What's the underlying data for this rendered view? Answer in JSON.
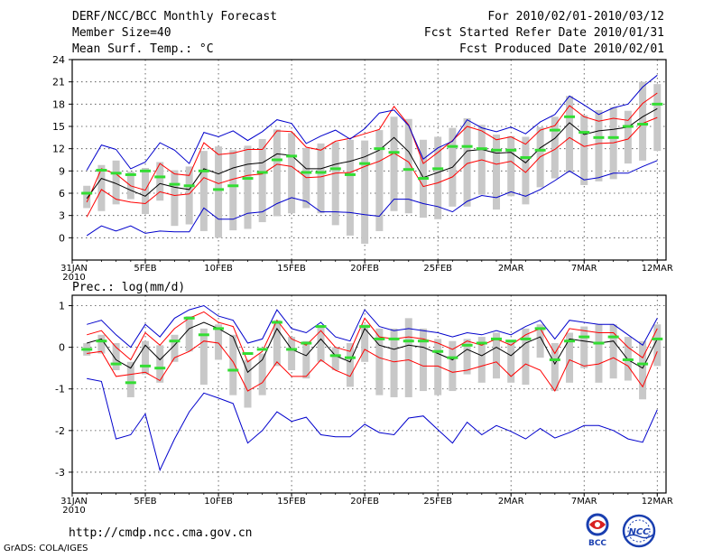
{
  "header": {
    "left_lines": [
      "DERF/NCC/BCC Monthly Forecast",
      "Member Size=40",
      "Mean Surf. Temp.: °C"
    ],
    "right_lines": [
      "For 2010/02/01-2010/03/12",
      "Fcst Started Refer Date 2010/01/31",
      "Fcst Produced Date 2010/02/01"
    ]
  },
  "footer": {
    "url": "http://cmdp.ncc.cma.gov.cn",
    "credit": "GrADS: COLA/IGES",
    "logo_left": "BCC",
    "logo_right": "NCC"
  },
  "colors": {
    "mean": "#000000",
    "spread": "#ff0000",
    "extreme": "#0000cc",
    "box": "#c8c8c8",
    "obs": "#33dd33"
  },
  "chart_data": [
    {
      "type": "line",
      "title": "Mean Surf. Temp.: °C",
      "x_tick_labels": [
        "31JAN\n2010",
        "5FEB",
        "10FEB",
        "15FEB",
        "20FEB",
        "25FEB",
        "2MAR",
        "7MAR",
        "12MAR"
      ],
      "x_tick_days": [
        0,
        5,
        10,
        15,
        20,
        25,
        30,
        35,
        40
      ],
      "ylim": [
        -3,
        24
      ],
      "yticks": [
        0,
        3,
        6,
        9,
        12,
        15,
        18,
        21,
        24
      ],
      "days": [
        1,
        2,
        3,
        4,
        5,
        6,
        7,
        8,
        9,
        10,
        11,
        12,
        13,
        14,
        15,
        16,
        17,
        18,
        19,
        20,
        21,
        22,
        23,
        24,
        25,
        26,
        27,
        28,
        29,
        30,
        31,
        32,
        33,
        34,
        35,
        36,
        37,
        38,
        39,
        40
      ],
      "series": [
        {
          "name": "max",
          "values": [
            0.3,
            1.6,
            0.9,
            1.6,
            0.6,
            0.9,
            0.8,
            0.8,
            4.0,
            2.5,
            2.5,
            3.3,
            3.5,
            4.6,
            5.4,
            4.9,
            3.5,
            3.5,
            3.4,
            3.1,
            2.9,
            5.2,
            5.2,
            4.6,
            4.2,
            3.5,
            4.9,
            5.7,
            5.4,
            6.2,
            5.6,
            6.5,
            7.7,
            9.0,
            7.8,
            8.1,
            8.7,
            8.7,
            9.6,
            10.4
          ]
        },
        {
          "name": "p_high",
          "values": [
            4.8,
            9.3,
            8.6,
            7.0,
            6.4,
            10.0,
            8.6,
            8.4,
            12.8,
            11.2,
            11.4,
            11.9,
            11.9,
            14.4,
            14.3,
            12.2,
            11.8,
            13.0,
            13.4,
            14.0,
            14.6,
            17.7,
            15.2,
            10.0,
            11.5,
            13.1,
            15.0,
            14.4,
            13.2,
            13.6,
            12.6,
            14.5,
            15.1,
            17.8,
            16.3,
            15.7,
            16.1,
            15.8,
            18.1,
            19.5
          ]
        },
        {
          "name": "mean",
          "values": [
            5.3,
            8.0,
            7.3,
            6.4,
            5.6,
            7.3,
            6.8,
            6.5,
            9.3,
            8.6,
            9.4,
            9.9,
            10.1,
            11.3,
            11.1,
            9.3,
            9.3,
            9.9,
            10.3,
            10.9,
            11.8,
            13.5,
            11.6,
            8.1,
            8.8,
            9.5,
            11.7,
            11.9,
            11.4,
            11.5,
            10.1,
            12.1,
            13.4,
            15.5,
            13.9,
            14.4,
            14.6,
            14.9,
            16.3,
            17.4
          ]
        },
        {
          "name": "p_low",
          "values": [
            2.8,
            6.5,
            5.2,
            4.8,
            4.6,
            6.2,
            5.7,
            5.9,
            8.1,
            7.3,
            7.9,
            8.4,
            8.6,
            9.9,
            9.6,
            8.1,
            8.2,
            8.7,
            8.8,
            9.6,
            10.3,
            11.4,
            10.2,
            6.9,
            7.4,
            8.2,
            10.0,
            10.5,
            9.9,
            10.3,
            8.8,
            10.9,
            11.9,
            13.5,
            12.3,
            12.7,
            12.8,
            13.3,
            15.4,
            16.2
          ]
        },
        {
          "name": "min",
          "values": [
            9.1,
            12.5,
            11.9,
            9.3,
            10.2,
            12.8,
            11.8,
            10.0,
            14.2,
            13.6,
            14.4,
            13.1,
            14.3,
            15.9,
            15.4,
            12.7,
            13.7,
            14.5,
            13.3,
            14.7,
            16.8,
            17.2,
            15.1,
            10.6,
            12.1,
            13.0,
            15.9,
            14.8,
            14.3,
            14.9,
            14.0,
            15.6,
            16.6,
            19.1,
            17.9,
            16.6,
            17.5,
            18.0,
            20.3,
            21.9
          ]
        }
      ],
      "obs_values": [
        6.0,
        9.1,
        8.7,
        8.5,
        9.0,
        8.2,
        7.2,
        7.0,
        9.0,
        6.5,
        7.0,
        8.0,
        8.8,
        10.5,
        11.0,
        8.8,
        8.8,
        9.3,
        8.5,
        10.0,
        12.0,
        11.5,
        9.2,
        8.0,
        9.3,
        12.3,
        12.3,
        12.0,
        11.8,
        11.8,
        10.8,
        11.8,
        14.5,
        16.3,
        14.2,
        13.5,
        13.5,
        15.0,
        15.3,
        18.0
      ],
      "boxes": [
        [
          4.0,
          7.0
        ],
        [
          3.6,
          9.8
        ],
        [
          4.5,
          10.4
        ],
        [
          5.2,
          8.9
        ],
        [
          3.2,
          9.4
        ],
        [
          5.0,
          10.2
        ],
        [
          1.6,
          9.1
        ],
        [
          1.8,
          9.6
        ],
        [
          0.9,
          11.7
        ],
        [
          0.0,
          12.3
        ],
        [
          1.0,
          11.8
        ],
        [
          1.2,
          12.4
        ],
        [
          2.1,
          13.3
        ],
        [
          2.9,
          14.6
        ],
        [
          3.3,
          14.1
        ],
        [
          4.0,
          12.1
        ],
        [
          3.3,
          12.7
        ],
        [
          1.7,
          12.9
        ],
        [
          0.3,
          13.2
        ],
        [
          -0.8,
          13.1
        ],
        [
          0.9,
          14.5
        ],
        [
          3.6,
          16.3
        ],
        [
          3.3,
          16.0
        ],
        [
          2.7,
          13.2
        ],
        [
          2.5,
          13.6
        ],
        [
          4.2,
          14.8
        ],
        [
          4.2,
          16.1
        ],
        [
          5.8,
          15.2
        ],
        [
          3.8,
          13.9
        ],
        [
          5.6,
          13.7
        ],
        [
          4.5,
          13.6
        ],
        [
          6.8,
          14.9
        ],
        [
          8.0,
          16.3
        ],
        [
          8.8,
          19.1
        ],
        [
          7.1,
          16.5
        ],
        [
          7.6,
          17.2
        ],
        [
          7.9,
          17.6
        ],
        [
          10.0,
          17.1
        ],
        [
          10.4,
          21.0
        ],
        [
          11.7,
          20.7
        ]
      ]
    },
    {
      "type": "line",
      "title": "Prec.: log(mm/d)",
      "x_tick_labels": [
        "31JAN\n2010",
        "5FEB",
        "10FEB",
        "15FEB",
        "20FEB",
        "25FEB",
        "2MAR",
        "7MAR",
        "12MAR"
      ],
      "x_tick_days": [
        0,
        5,
        10,
        15,
        20,
        25,
        30,
        35,
        40
      ],
      "ylim": [
        -3.5,
        1.25
      ],
      "yticks": [
        -3,
        -2,
        -1,
        0,
        1
      ],
      "days": [
        1,
        2,
        3,
        4,
        5,
        6,
        7,
        8,
        9,
        10,
        11,
        12,
        13,
        14,
        15,
        16,
        17,
        18,
        19,
        20,
        21,
        22,
        23,
        24,
        25,
        26,
        27,
        28,
        29,
        30,
        31,
        32,
        33,
        34,
        35,
        36,
        37,
        38,
        39,
        40
      ],
      "series": [
        {
          "name": "max",
          "values": [
            -0.75,
            -0.82,
            -2.2,
            -2.1,
            -1.6,
            -2.95,
            -2.2,
            -1.55,
            -1.1,
            -1.22,
            -1.35,
            -2.3,
            -2.0,
            -1.55,
            -1.78,
            -1.68,
            -2.1,
            -2.15,
            -2.15,
            -1.85,
            -2.05,
            -2.1,
            -1.7,
            -1.65,
            -1.98,
            -2.3,
            -1.8,
            -2.1,
            -1.88,
            -2.02,
            -2.2,
            -1.95,
            -2.18,
            -2.05,
            -1.88,
            -1.88,
            -2.0,
            -2.2,
            -2.28,
            -1.5
          ]
        },
        {
          "name": "p_high",
          "values": [
            -0.15,
            -0.1,
            -0.7,
            -0.65,
            -0.6,
            -0.8,
            -0.25,
            -0.1,
            0.15,
            0.1,
            -0.35,
            -1.05,
            -0.85,
            -0.35,
            -0.7,
            -0.7,
            -0.3,
            -0.55,
            -0.7,
            -0.05,
            -0.25,
            -0.35,
            -0.3,
            -0.45,
            -0.45,
            -0.6,
            -0.55,
            -0.45,
            -0.35,
            -0.7,
            -0.4,
            -0.55,
            -1.05,
            -0.3,
            -0.45,
            -0.4,
            -0.25,
            -0.45,
            -0.95,
            -0.1
          ]
        },
        {
          "name": "mean",
          "values": [
            0.1,
            0.2,
            -0.3,
            -0.5,
            0.05,
            -0.3,
            0.05,
            0.45,
            0.6,
            0.45,
            0.25,
            -0.6,
            -0.3,
            0.45,
            -0.05,
            -0.2,
            0.2,
            -0.2,
            -0.35,
            0.45,
            0.05,
            -0.05,
            0.05,
            0.0,
            -0.15,
            -0.3,
            -0.05,
            -0.2,
            0.0,
            -0.2,
            0.1,
            0.25,
            -0.4,
            0.2,
            0.15,
            0.1,
            0.15,
            -0.3,
            -0.5,
            0.2
          ]
        },
        {
          "name": "p_low",
          "values": [
            0.3,
            0.4,
            0.0,
            -0.3,
            0.35,
            0.05,
            0.45,
            0.7,
            0.85,
            0.6,
            0.5,
            -0.35,
            -0.1,
            0.65,
            0.2,
            0.05,
            0.4,
            0.0,
            -0.1,
            0.7,
            0.25,
            0.2,
            0.25,
            0.2,
            0.1,
            -0.05,
            0.15,
            0.05,
            0.2,
            0.05,
            0.3,
            0.45,
            -0.15,
            0.45,
            0.4,
            0.35,
            0.35,
            0.0,
            -0.25,
            0.45
          ]
        },
        {
          "name": "min",
          "values": [
            0.55,
            0.65,
            0.3,
            0.0,
            0.55,
            0.25,
            0.7,
            0.9,
            1.0,
            0.75,
            0.65,
            0.1,
            0.2,
            0.9,
            0.45,
            0.35,
            0.6,
            0.25,
            0.15,
            0.9,
            0.5,
            0.4,
            0.45,
            0.4,
            0.35,
            0.25,
            0.35,
            0.3,
            0.4,
            0.3,
            0.5,
            0.65,
            0.2,
            0.65,
            0.6,
            0.55,
            0.55,
            0.3,
            0.05,
            0.7
          ]
        }
      ],
      "obs_values": [
        -0.05,
        0.15,
        -0.4,
        -0.85,
        -0.45,
        -0.5,
        0.15,
        0.7,
        0.3,
        0.45,
        -0.55,
        -0.15,
        -0.05,
        0.6,
        -0.05,
        0.1,
        0.5,
        -0.2,
        -0.25,
        0.5,
        0.2,
        0.2,
        0.15,
        0.15,
        -0.1,
        -0.25,
        0.05,
        0.1,
        0.2,
        0.15,
        0.2,
        0.45,
        -0.3,
        0.15,
        0.25,
        0.1,
        0.25,
        -0.3,
        -0.4,
        0.2
      ],
      "boxes": [
        [
          -0.2,
          0.1
        ],
        [
          -0.15,
          0.3
        ],
        [
          -0.55,
          0.1
        ],
        [
          -1.2,
          -0.35
        ],
        [
          -0.65,
          0.15
        ],
        [
          -0.85,
          0.05
        ],
        [
          -0.35,
          0.3
        ],
        [
          -0.1,
          0.75
        ],
        [
          -0.9,
          0.45
        ],
        [
          -0.3,
          0.55
        ],
        [
          -1.15,
          0.3
        ],
        [
          -1.45,
          -0.3
        ],
        [
          -1.15,
          -0.15
        ],
        [
          -0.45,
          0.65
        ],
        [
          -0.55,
          0.25
        ],
        [
          -0.75,
          0.15
        ],
        [
          -0.35,
          0.5
        ],
        [
          -0.55,
          0.0
        ],
        [
          -0.95,
          0.1
        ],
        [
          -0.35,
          0.55
        ],
        [
          -1.15,
          0.45
        ],
        [
          -1.2,
          0.45
        ],
        [
          -1.2,
          0.7
        ],
        [
          -1.05,
          0.45
        ],
        [
          -1.15,
          0.2
        ],
        [
          -1.05,
          0.15
        ],
        [
          -0.65,
          0.2
        ],
        [
          -0.85,
          0.25
        ],
        [
          -0.75,
          0.35
        ],
        [
          -0.85,
          0.15
        ],
        [
          -0.9,
          0.45
        ],
        [
          -0.25,
          0.55
        ],
        [
          -1.05,
          0.1
        ],
        [
          -0.85,
          0.35
        ],
        [
          -0.5,
          0.5
        ],
        [
          -0.85,
          0.55
        ],
        [
          -0.75,
          0.55
        ],
        [
          -0.8,
          0.25
        ],
        [
          -1.25,
          0.15
        ],
        [
          -0.45,
          0.55
        ]
      ]
    }
  ]
}
